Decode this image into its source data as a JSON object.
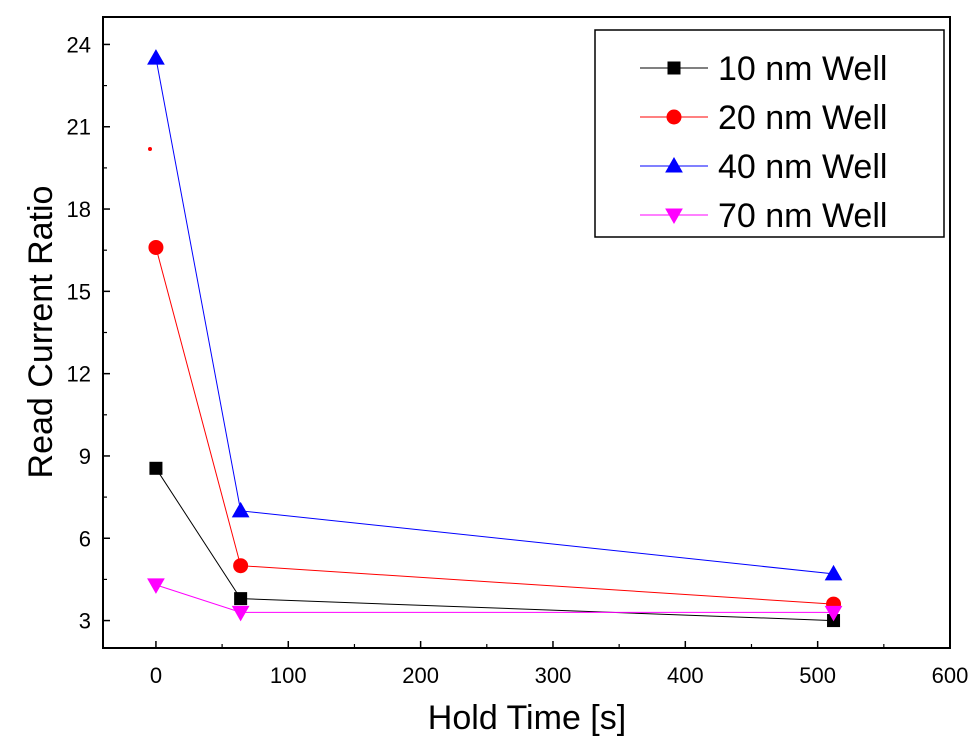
{
  "chart_data": {
    "type": "line",
    "xlabel": "Hold Time [s]",
    "ylabel": "Read Current Ratio",
    "xlim": [
      -40,
      600
    ],
    "ylim": [
      2.0,
      25.0
    ],
    "xticks": [
      0,
      100,
      200,
      300,
      400,
      500,
      600
    ],
    "yticks": [
      3,
      6,
      9,
      12,
      15,
      18,
      21,
      24
    ],
    "legend_position": "top-right",
    "grid": false,
    "x": [
      0,
      64,
      512
    ],
    "series": [
      {
        "name": "10 nm Well",
        "values": [
          8.55,
          3.8,
          3.0
        ],
        "color": "#000000",
        "marker": "square"
      },
      {
        "name": "20 nm Well",
        "values": [
          16.6,
          5.0,
          3.6
        ],
        "color": "#ff0000",
        "marker": "circle"
      },
      {
        "name": "40 nm Well",
        "values": [
          23.5,
          7.0,
          4.7
        ],
        "color": "#0000ff",
        "marker": "triangle-up"
      },
      {
        "name": "70 nm Well",
        "values": [
          4.3,
          3.3,
          3.3
        ],
        "color": "#ff00ff",
        "marker": "triangle-down"
      }
    ]
  }
}
